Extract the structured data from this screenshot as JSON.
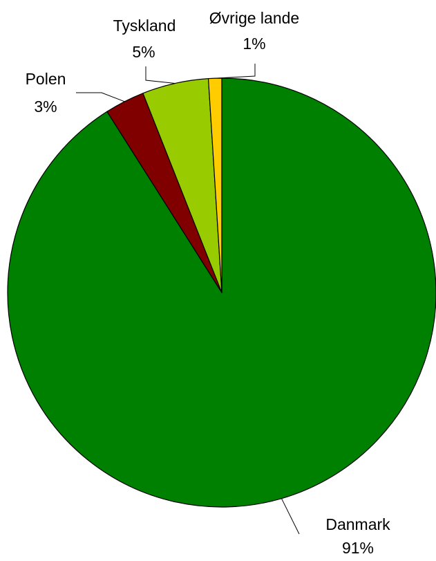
{
  "chart_data": {
    "type": "pie",
    "title": "",
    "slices": [
      {
        "label": "Danmark",
        "value": 91,
        "value_label": "91%",
        "color": "#008000"
      },
      {
        "label": "Polen",
        "value": 3,
        "value_label": "3%",
        "color": "#800000"
      },
      {
        "label": "Tyskland",
        "value": 5,
        "value_label": "5%",
        "color": "#99CC00"
      },
      {
        "label": "Øvrige lande",
        "value": 1,
        "value_label": "1%",
        "color": "#FFCC00"
      }
    ],
    "start_angle": "12 o'clock",
    "direction": "clockwise",
    "legend": "none",
    "data_labels": "category and percentage with leader lines"
  }
}
